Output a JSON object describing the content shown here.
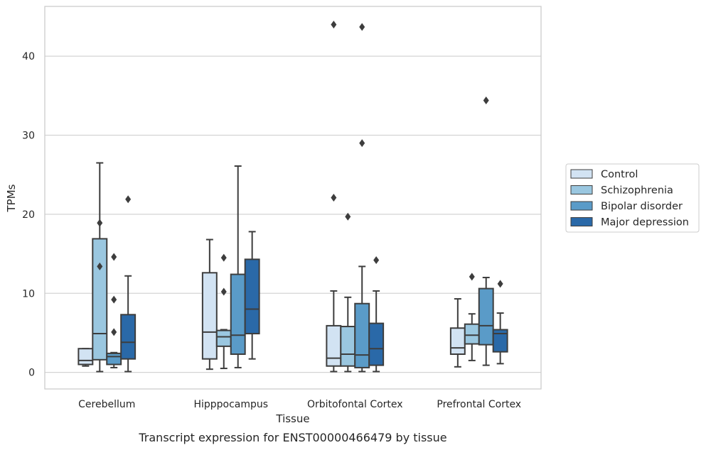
{
  "chart_data": {
    "type": "box",
    "caption": "Transcript expression for ENST00000466479 by tissue",
    "xlabel": "Tissue",
    "ylabel": "TPMs",
    "ylim": [
      -2.1,
      46.3
    ],
    "yticks": [
      0,
      10,
      20,
      30,
      40
    ],
    "grid": "horizontal",
    "legend_position": "right",
    "categories": [
      "Cerebellum",
      "Hipppocampus",
      "Orbitofontal Cortex",
      "Prefrontal Cortex"
    ],
    "series": [
      {
        "name": "Control",
        "color": "#d2e3f3",
        "boxes": [
          {
            "whislo": 0.8,
            "q1": 1.0,
            "med": 1.5,
            "q3": 3.0,
            "whishi": 3.0,
            "fliers": []
          },
          {
            "whislo": 0.4,
            "q1": 1.7,
            "med": 5.1,
            "q3": 12.6,
            "whishi": 16.8,
            "fliers": []
          },
          {
            "whislo": 0.1,
            "q1": 0.8,
            "med": 1.8,
            "q3": 5.9,
            "whishi": 10.3,
            "fliers": [
              22.1,
              44.0
            ]
          },
          {
            "whislo": 0.7,
            "q1": 2.3,
            "med": 3.1,
            "q3": 5.6,
            "whishi": 9.3,
            "fliers": []
          }
        ]
      },
      {
        "name": "Schizophrenia",
        "color": "#9ac7e0",
        "boxes": [
          {
            "whislo": 0.1,
            "q1": 1.6,
            "med": 4.9,
            "q3": 16.9,
            "whishi": 26.5,
            "fliers": [
              13.4,
              18.9
            ]
          },
          {
            "whislo": 0.5,
            "q1": 3.3,
            "med": 4.5,
            "q3": 5.3,
            "whishi": 5.4,
            "fliers": [
              10.2,
              14.5
            ]
          },
          {
            "whislo": 0.1,
            "q1": 0.8,
            "med": 2.3,
            "q3": 5.8,
            "whishi": 9.5,
            "fliers": [
              19.7
            ]
          },
          {
            "whislo": 1.5,
            "q1": 3.6,
            "med": 4.7,
            "q3": 6.1,
            "whishi": 7.4,
            "fliers": [
              12.1
            ]
          }
        ]
      },
      {
        "name": "Bipolar disorder",
        "color": "#5a9bc8",
        "boxes": [
          {
            "whislo": 0.6,
            "q1": 1.0,
            "med": 2.0,
            "q3": 2.4,
            "whishi": 2.5,
            "fliers": [
              5.1,
              9.2,
              14.6
            ]
          },
          {
            "whislo": 0.6,
            "q1": 2.3,
            "med": 4.7,
            "q3": 12.4,
            "whishi": 26.1,
            "fliers": []
          },
          {
            "whislo": 0.1,
            "q1": 0.6,
            "med": 2.2,
            "q3": 8.7,
            "whishi": 13.4,
            "fliers": [
              29.0,
              43.7
            ]
          },
          {
            "whislo": 0.9,
            "q1": 3.5,
            "med": 5.9,
            "q3": 10.6,
            "whishi": 12.0,
            "fliers": [
              34.4
            ]
          }
        ]
      },
      {
        "name": "Major depression",
        "color": "#2a69a8",
        "boxes": [
          {
            "whislo": 0.1,
            "q1": 1.7,
            "med": 3.8,
            "q3": 7.3,
            "whishi": 12.2,
            "fliers": [
              21.9
            ]
          },
          {
            "whislo": 1.7,
            "q1": 4.9,
            "med": 8.0,
            "q3": 14.3,
            "whishi": 17.8,
            "fliers": []
          },
          {
            "whislo": 0.1,
            "q1": 0.9,
            "med": 3.0,
            "q3": 6.2,
            "whishi": 10.3,
            "fliers": [
              14.2
            ]
          },
          {
            "whislo": 1.1,
            "q1": 2.6,
            "med": 4.9,
            "q3": 5.4,
            "whishi": 7.5,
            "fliers": [
              11.2
            ]
          }
        ]
      }
    ]
  }
}
